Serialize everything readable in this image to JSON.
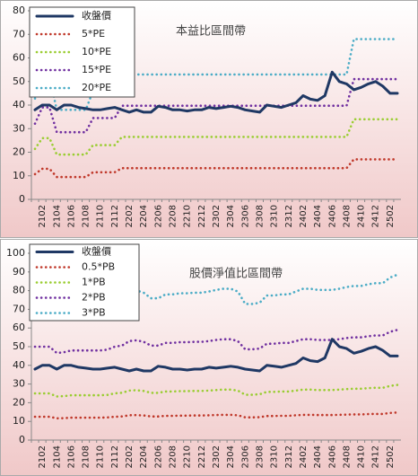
{
  "chart_data": [
    {
      "type": "line",
      "title": "本益比區間帶",
      "legend": "top-left",
      "categories": [
        null,
        "2102",
        null,
        "2104",
        null,
        "2106",
        null,
        "2108",
        null,
        "2110",
        null,
        "2112",
        null,
        "2202",
        null,
        "2204",
        null,
        "2206",
        null,
        "2208",
        null,
        "2210",
        null,
        "2212",
        null,
        "2302",
        null,
        "2304",
        null,
        "2306",
        null,
        "2308",
        null,
        "2310",
        null,
        "2312",
        null,
        "2402",
        null,
        "2404",
        null,
        "2406",
        null,
        "2408",
        null,
        "2410",
        null,
        "2412",
        null,
        "2502",
        null
      ],
      "ylim": [
        0,
        80
      ],
      "yticks": [
        0,
        10,
        20,
        30,
        40,
        50,
        60,
        70,
        80
      ],
      "series": [
        {
          "name": "收盤價",
          "color": "#1f3864",
          "style": "solid",
          "values": [
            38,
            40,
            40,
            38,
            40,
            40,
            39,
            38.5,
            38,
            38,
            38.5,
            39,
            38,
            37,
            38,
            37,
            37,
            39.5,
            39,
            38,
            38,
            37.5,
            38,
            38,
            39,
            38.5,
            39,
            39.5,
            39,
            38,
            37.5,
            37,
            40,
            39.5,
            39,
            40,
            41,
            44,
            42.5,
            42,
            44,
            54,
            50,
            49,
            46.5,
            47.5,
            49,
            50,
            48,
            45,
            45
          ]
        },
        {
          "name": "5*PE",
          "color": "#c0392b",
          "style": "dotted",
          "values": [
            10.7,
            13,
            13,
            9.5,
            9.5,
            9.5,
            9.5,
            9.5,
            11.5,
            11.5,
            11.5,
            11.5,
            13.25,
            13.25,
            13.25,
            13.25,
            13.25,
            13.25,
            13.25,
            13.25,
            13.25,
            13.25,
            13.25,
            13.25,
            13.25,
            13.25,
            13.25,
            13.25,
            13.25,
            13.25,
            13.25,
            13.25,
            13.25,
            13.25,
            13.25,
            13.25,
            13.25,
            13.25,
            13.25,
            13.25,
            13.25,
            13.25,
            13.25,
            13.25,
            17,
            17,
            17,
            17,
            17,
            17,
            17
          ]
        },
        {
          "name": "10*PE",
          "color": "#9acd32",
          "style": "dotted",
          "values": [
            21.4,
            26,
            26,
            19,
            19,
            19,
            19,
            19,
            23,
            23,
            23,
            23,
            26.5,
            26.5,
            26.5,
            26.5,
            26.5,
            26.5,
            26.5,
            26.5,
            26.5,
            26.5,
            26.5,
            26.5,
            26.5,
            26.5,
            26.5,
            26.5,
            26.5,
            26.5,
            26.5,
            26.5,
            26.5,
            26.5,
            26.5,
            26.5,
            26.5,
            26.5,
            26.5,
            26.5,
            26.5,
            26.5,
            26.5,
            26.5,
            34,
            34,
            34,
            34,
            34,
            34,
            34
          ]
        },
        {
          "name": "15*PE",
          "color": "#7030a0",
          "style": "dotted",
          "values": [
            32.1,
            39,
            39,
            28.5,
            28.5,
            28.5,
            28.5,
            28.5,
            34.5,
            34.5,
            34.5,
            34.5,
            39.75,
            39.75,
            39.75,
            39.75,
            39.75,
            39.75,
            39.75,
            39.75,
            39.75,
            39.75,
            39.75,
            39.75,
            39.75,
            39.75,
            39.75,
            39.75,
            39.75,
            39.75,
            39.75,
            39.75,
            39.75,
            39.75,
            39.75,
            39.75,
            39.75,
            39.75,
            39.75,
            39.75,
            39.75,
            39.75,
            39.75,
            39.75,
            51,
            51,
            51,
            51,
            51,
            51,
            51
          ]
        },
        {
          "name": "20*PE",
          "color": "#4bacc6",
          "style": "dotted",
          "values": [
            42.8,
            52,
            52,
            38,
            38,
            38,
            38,
            38,
            46,
            46,
            46,
            46,
            53,
            53,
            53,
            53,
            53,
            53,
            53,
            53,
            53,
            53,
            53,
            53,
            53,
            53,
            53,
            53,
            53,
            53,
            53,
            53,
            53,
            53,
            53,
            53,
            53,
            53,
            53,
            53,
            53,
            53,
            53,
            53,
            68,
            68,
            68,
            68,
            68,
            68,
            68
          ]
        }
      ]
    },
    {
      "type": "line",
      "title": "股價淨值比區間帶",
      "legend": "top-left",
      "categories": [
        null,
        "2102",
        null,
        "2104",
        null,
        "2106",
        null,
        "2108",
        null,
        "2110",
        null,
        "2112",
        null,
        "2202",
        null,
        "2204",
        null,
        "2206",
        null,
        "2208",
        null,
        "2210",
        null,
        "2212",
        null,
        "2302",
        null,
        "2304",
        null,
        "2306",
        null,
        "2308",
        null,
        "2310",
        null,
        "2312",
        null,
        "2402",
        null,
        "2404",
        null,
        "2406",
        null,
        "2408",
        null,
        "2410",
        null,
        "2412",
        null,
        "2502",
        null
      ],
      "ylim": [
        0,
        100
      ],
      "yticks": [
        0,
        10,
        20,
        30,
        40,
        50,
        60,
        70,
        80,
        90,
        100
      ],
      "series": [
        {
          "name": "收盤價",
          "color": "#1f3864",
          "style": "solid",
          "values": [
            38,
            40,
            40,
            38,
            40,
            40,
            39,
            38.5,
            38,
            38,
            38.5,
            39,
            38,
            37,
            38,
            37,
            37,
            39.5,
            39,
            38,
            38,
            37.5,
            38,
            38,
            39,
            38.5,
            39,
            39.5,
            39,
            38,
            37.5,
            37,
            40,
            39.5,
            39,
            40,
            41,
            44,
            42.5,
            42,
            44,
            54,
            50,
            49,
            46.5,
            47.5,
            49,
            50,
            48,
            45,
            45
          ]
        },
        {
          "name": "0.5*PB",
          "color": "#c0392b",
          "style": "dotted",
          "values": [
            12.5,
            12.5,
            12.5,
            11.65,
            11.75,
            12,
            12,
            12,
            12,
            12,
            12.1,
            12.5,
            12.65,
            13.25,
            13.35,
            13.15,
            12.65,
            12.65,
            13,
            13,
            13.1,
            13.1,
            13.15,
            13.15,
            13.25,
            13.4,
            13.5,
            13.5,
            13.25,
            12.15,
            12.15,
            12.25,
            12.9,
            12.9,
            13,
            13,
            13.25,
            13.5,
            13.5,
            13.4,
            13.4,
            13.4,
            13.5,
            13.65,
            13.75,
            13.75,
            13.9,
            14,
            14,
            14.5,
            14.75
          ]
        },
        {
          "name": "1*PB",
          "color": "#9acd32",
          "style": "dotted",
          "values": [
            25,
            25,
            25,
            23.3,
            23.5,
            24,
            24,
            24,
            24,
            24,
            24.2,
            25,
            25.3,
            26.5,
            26.7,
            26.3,
            25.3,
            25.3,
            26,
            26,
            26.2,
            26.2,
            26.3,
            26.3,
            26.5,
            26.8,
            27,
            27,
            26.5,
            24.3,
            24.3,
            24.5,
            25.8,
            25.8,
            26,
            26,
            26.5,
            27,
            27,
            26.8,
            26.8,
            26.8,
            27,
            27.3,
            27.5,
            27.5,
            27.8,
            28,
            28,
            29,
            29.5
          ]
        },
        {
          "name": "2*PB",
          "color": "#7030a0",
          "style": "dotted",
          "values": [
            50,
            50,
            50,
            46.6,
            47,
            48,
            48,
            48,
            48,
            48,
            48.4,
            50,
            50.6,
            53,
            53.4,
            52.6,
            50.6,
            50.6,
            52,
            52,
            52.4,
            52.4,
            52.6,
            52.6,
            53,
            53.6,
            54,
            54,
            53,
            48.6,
            48.6,
            49,
            51.6,
            51.6,
            52,
            52,
            53,
            54,
            54,
            53.6,
            53.6,
            53.6,
            54,
            54.6,
            55,
            55,
            55.6,
            56,
            56,
            58,
            59
          ]
        },
        {
          "name": "3*PB",
          "color": "#4bacc6",
          "style": "dotted",
          "values": [
            75,
            75,
            75,
            69.9,
            70.5,
            72,
            72,
            72,
            72,
            72,
            72.6,
            75,
            75.9,
            79.5,
            80.1,
            78.9,
            75.9,
            75.9,
            78,
            78,
            78.6,
            78.6,
            78.9,
            78.9,
            79.5,
            80.4,
            81,
            81,
            79.5,
            72.9,
            72.9,
            73.5,
            77.4,
            77.4,
            78,
            78,
            79.5,
            81,
            81,
            80.4,
            80.4,
            80.4,
            81,
            81.9,
            82.5,
            82.5,
            83.4,
            84,
            84,
            87,
            88.5
          ]
        }
      ]
    }
  ]
}
